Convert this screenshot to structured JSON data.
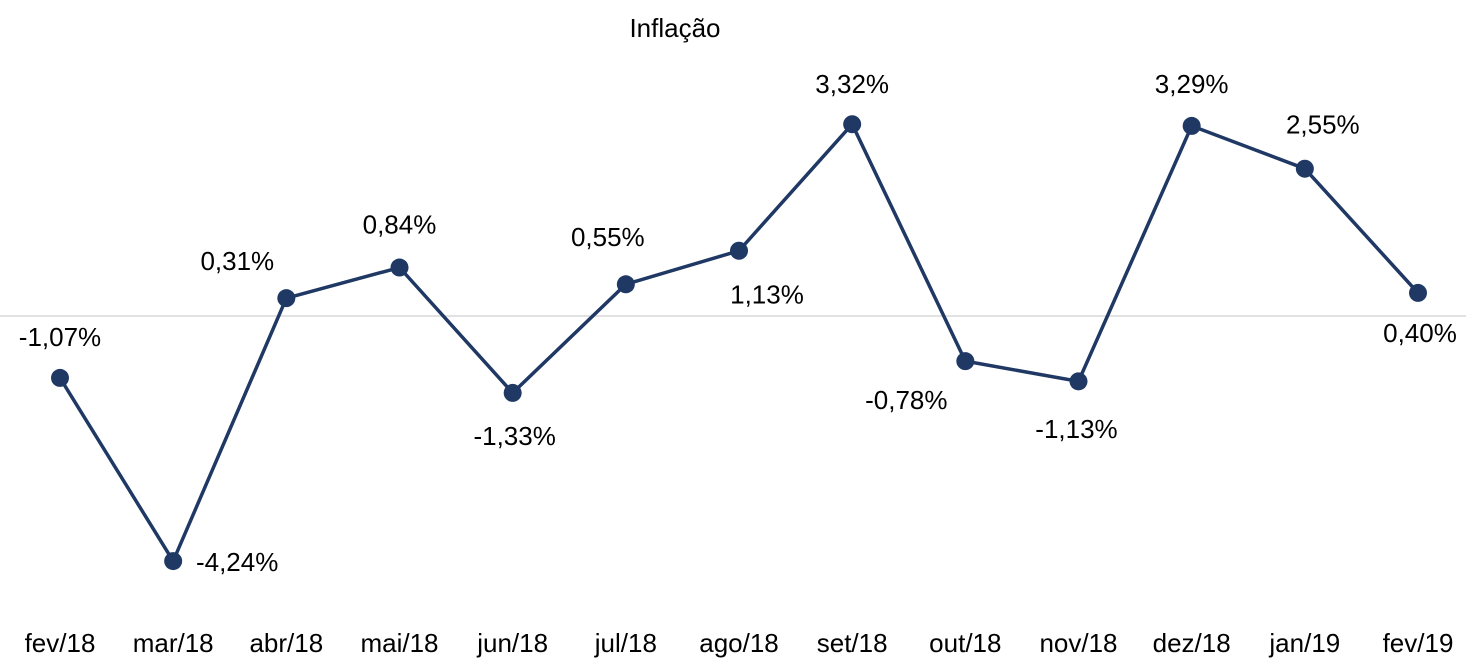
{
  "chart_data": {
    "type": "line",
    "title": "Inflação",
    "categories": [
      "fev/18",
      "mar/18",
      "abr/18",
      "mai/18",
      "jun/18",
      "jul/18",
      "ago/18",
      "set/18",
      "out/18",
      "nov/18",
      "dez/18",
      "jan/19",
      "fev/19"
    ],
    "series": [
      {
        "name": "Inflação",
        "color": "#1f3864",
        "values": [
          -1.07,
          -4.24,
          0.31,
          0.84,
          -1.33,
          0.55,
          1.13,
          3.32,
          -0.78,
          -1.13,
          3.29,
          2.55,
          0.4
        ],
        "value_labels": [
          "-1,07%",
          "-4,24%",
          "0,31%",
          "0,84%",
          "-1,33%",
          "0,55%",
          "1,13%",
          "3,32%",
          "-0,78%",
          "-1,13%",
          "3,29%",
          "2,55%",
          "0,40%"
        ]
      }
    ],
    "ylim": [
      -5,
      4.5
    ]
  }
}
